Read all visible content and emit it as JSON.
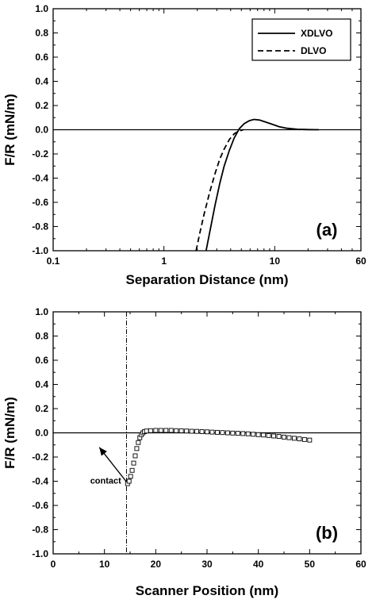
{
  "chart_data": [
    {
      "type": "line",
      "panel_label": "(a)",
      "xlabel": "Separation Distance (nm)",
      "ylabel": "F/R (mN/m)",
      "xscale": "log",
      "xlim": [
        0.1,
        60
      ],
      "ylim": [
        -1.0,
        1.0
      ],
      "x_ticks": [
        0.1,
        1,
        10,
        60
      ],
      "x_tick_labels": [
        "0.1",
        "1",
        "10",
        "60"
      ],
      "y_ticks": [
        -1.0,
        -0.8,
        -0.6,
        -0.4,
        -0.2,
        0.0,
        0.2,
        0.4,
        0.6,
        0.8,
        1.0
      ],
      "y_tick_labels": [
        "-1.0",
        "-0.8",
        "-0.6",
        "-0.4",
        "-0.2",
        "0.0",
        "0.2",
        "0.4",
        "0.6",
        "0.8",
        "1.0"
      ],
      "zero_line": true,
      "legend_position": "top-right",
      "series": [
        {
          "name": "XDLVO",
          "style": "solid",
          "x": [
            2.4,
            2.6,
            2.9,
            3.2,
            3.5,
            3.9,
            4.3,
            4.8,
            5.3,
            5.9,
            6.5,
            7.3,
            8.2,
            9.5,
            11,
            13,
            16,
            20,
            25
          ],
          "y": [
            -1.0,
            -0.84,
            -0.62,
            -0.44,
            -0.3,
            -0.17,
            -0.07,
            0.01,
            0.05,
            0.075,
            0.085,
            0.08,
            0.065,
            0.045,
            0.025,
            0.012,
            0.004,
            0.001,
            0.0
          ]
        },
        {
          "name": "DLVO",
          "style": "dashed",
          "x": [
            1.95,
            2.1,
            2.3,
            2.6,
            2.9,
            3.2,
            3.5,
            3.9,
            4.3,
            4.7,
            5.2
          ],
          "y": [
            -1.0,
            -0.86,
            -0.7,
            -0.51,
            -0.36,
            -0.24,
            -0.16,
            -0.08,
            -0.035,
            -0.012,
            0.0
          ]
        }
      ]
    },
    {
      "type": "scatter",
      "panel_label": "(b)",
      "xlabel": "Scanner Position (nm)",
      "ylabel": "F/R (mN/m)",
      "xlim": [
        0,
        60
      ],
      "ylim": [
        -1.0,
        1.0
      ],
      "x_ticks": [
        0,
        10,
        20,
        30,
        40,
        50,
        60
      ],
      "x_tick_labels": [
        "0",
        "10",
        "20",
        "30",
        "40",
        "50",
        "60"
      ],
      "y_ticks": [
        -1.0,
        -0.8,
        -0.6,
        -0.4,
        -0.2,
        0.0,
        0.2,
        0.4,
        0.6,
        0.8,
        1.0
      ],
      "y_tick_labels": [
        "-1.0",
        "-0.8",
        "-0.6",
        "-0.4",
        "-0.2",
        "0.0",
        "0.2",
        "0.4",
        "0.6",
        "0.8",
        "1.0"
      ],
      "zero_line": true,
      "contact_line_x": 14.3,
      "annotation": {
        "text": "contact",
        "arrow_from": [
          14.2,
          -0.4
        ],
        "arrow_to": [
          9,
          -0.12
        ]
      },
      "series": [
        {
          "marker": "open-square",
          "x": [
            14.5,
            14.8,
            15.1,
            15.4,
            15.7,
            16.0,
            16.3,
            16.6,
            16.9,
            17.2,
            17.5,
            17.8,
            18.2,
            19,
            20,
            21,
            22,
            23,
            24,
            25,
            26,
            27,
            28,
            29,
            30,
            31,
            32,
            33,
            34,
            35,
            36,
            37,
            38,
            39,
            40,
            41,
            42,
            43,
            44,
            45,
            46,
            47,
            48,
            49,
            50
          ],
          "y": [
            -0.42,
            -0.4,
            -0.36,
            -0.31,
            -0.25,
            -0.19,
            -0.13,
            -0.08,
            -0.04,
            -0.015,
            0.0,
            0.01,
            0.015,
            0.018,
            0.02,
            0.02,
            0.02,
            0.02,
            0.018,
            0.017,
            0.015,
            0.013,
            0.012,
            0.01,
            0.008,
            0.006,
            0.004,
            0.002,
            0.0,
            -0.002,
            -0.004,
            -0.006,
            -0.008,
            -0.012,
            -0.015,
            -0.018,
            -0.022,
            -0.026,
            -0.03,
            -0.035,
            -0.04,
            -0.045,
            -0.05,
            -0.055,
            -0.06
          ]
        }
      ]
    }
  ]
}
